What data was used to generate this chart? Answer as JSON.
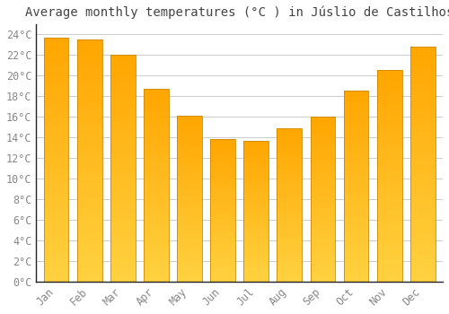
{
  "title": "Average monthly temperatures (°C ) in Júslio de Castilhos",
  "months": [
    "Jan",
    "Feb",
    "Mar",
    "Apr",
    "May",
    "Jun",
    "Jul",
    "Aug",
    "Sep",
    "Oct",
    "Nov",
    "Dec"
  ],
  "values": [
    23.7,
    23.5,
    22.0,
    18.7,
    16.1,
    13.8,
    13.7,
    14.9,
    16.0,
    18.5,
    20.5,
    22.8
  ],
  "bar_color_top": "#FFA500",
  "bar_color_bottom": "#FFD060",
  "bar_edge_color": "#CC8800",
  "background_color": "#FFFFFF",
  "grid_color": "#CCCCCC",
  "tick_label_color": "#888888",
  "title_color": "#444444",
  "spine_color": "#222222",
  "ylim": [
    0,
    25
  ],
  "yticks": [
    0,
    2,
    4,
    6,
    8,
    10,
    12,
    14,
    16,
    18,
    20,
    22,
    24
  ],
  "title_fontsize": 10,
  "tick_fontsize": 8.5,
  "bar_width": 0.75
}
